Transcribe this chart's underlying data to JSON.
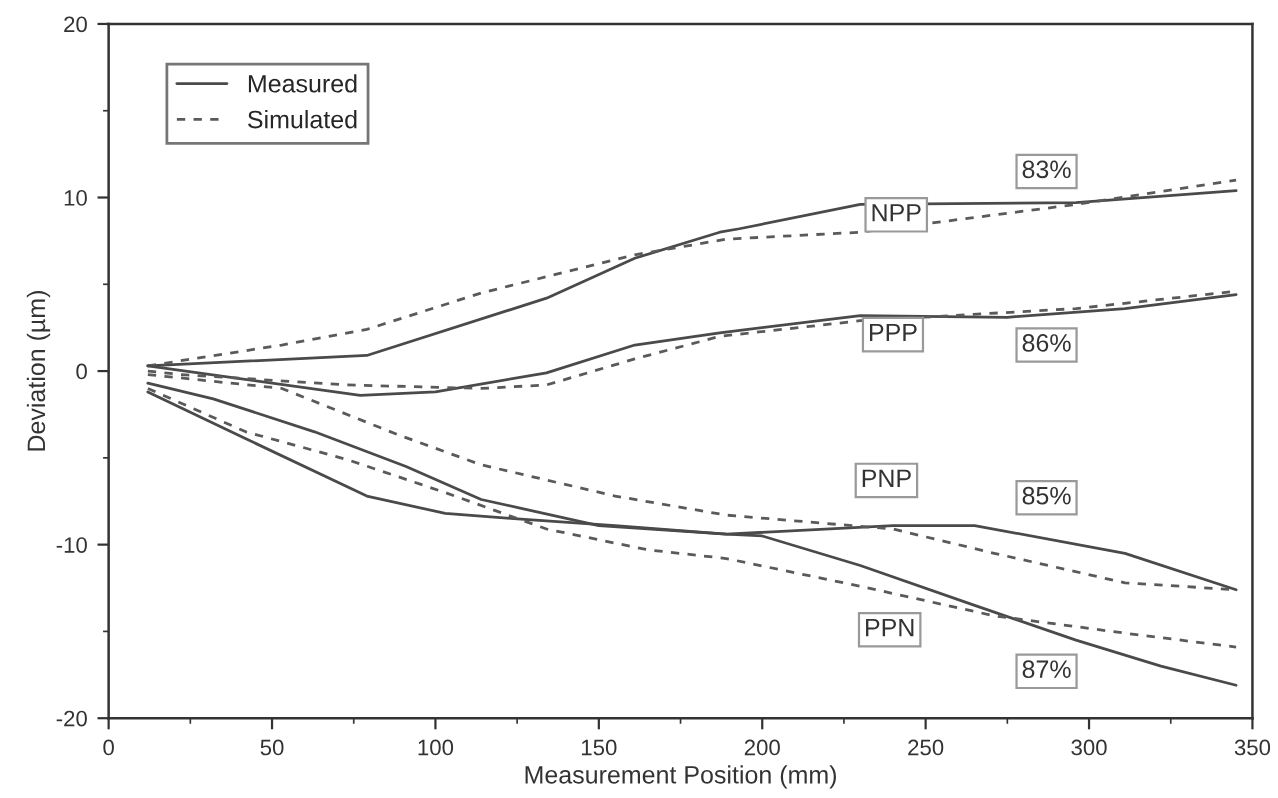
{
  "chart_data": {
    "type": "line",
    "xlabel": "Measurement Position (mm)",
    "ylabel": "Deviation (µm)",
    "xlim": [
      0,
      350
    ],
    "xticks": [
      0,
      50,
      100,
      150,
      200,
      250,
      300,
      350
    ],
    "ylim": [
      -20,
      20
    ],
    "yticks": [
      -20,
      -10,
      0,
      10,
      20
    ],
    "grid": false,
    "legend": "top left",
    "marker": "none",
    "series": [
      {
        "name": "Measured",
        "color": "#4a4a4a",
        "line_style": "solid",
        "x": [
          12,
          79,
          134,
          161,
          187,
          193,
          230,
          296,
          345
        ],
        "values": [
          0.3,
          0.9,
          4.2,
          6.5,
          8.0,
          8.2,
          9.6,
          9.7,
          10.4
        ]
      },
      {
        "name": "Simulated",
        "color": "#5a5a5a",
        "line_style": "dashed",
        "x": [
          12,
          53,
          79,
          114,
          161,
          189,
          230,
          296,
          345
        ],
        "values": [
          0.3,
          1.5,
          2.4,
          4.5,
          6.7,
          7.6,
          8.0,
          9.6,
          11.0
        ]
      },
      {
        "color": "#4a4a4a",
        "line_style": "solid",
        "x": [
          12,
          77,
          100,
          134,
          161,
          187,
          230,
          275,
          311,
          345
        ],
        "values": [
          0.3,
          -1.4,
          -1.2,
          -0.1,
          1.5,
          2.2,
          3.2,
          3.1,
          3.6,
          4.4
        ]
      },
      {
        "color": "#5a5a5a",
        "line_style": "dashed",
        "x": [
          12,
          22,
          73,
          114,
          134,
          161,
          187,
          230,
          296,
          345
        ],
        "values": [
          0.0,
          -0.2,
          -0.8,
          -1.0,
          -0.8,
          0.7,
          2.0,
          2.9,
          3.6,
          4.6
        ]
      },
      {
        "color": "#4a4a4a",
        "line_style": "solid",
        "x": [
          12,
          32,
          63,
          91,
          114,
          150,
          189,
          240,
          265,
          311,
          345
        ],
        "values": [
          -0.7,
          -1.6,
          -3.5,
          -5.5,
          -7.4,
          -8.9,
          -9.4,
          -8.9,
          -8.9,
          -10.5,
          -12.6
        ]
      },
      {
        "color": "#5a5a5a",
        "line_style": "dashed",
        "x": [
          12,
          53,
          89,
          114,
          155,
          189,
          240,
          271,
          311,
          345
        ],
        "values": [
          -0.2,
          -1.0,
          -3.7,
          -5.4,
          -7.2,
          -8.3,
          -9.1,
          -10.5,
          -12.2,
          -12.6
        ]
      },
      {
        "color": "#4a4a4a",
        "line_style": "solid",
        "x": [
          12,
          42,
          79,
          103,
          124,
          155,
          189,
          200,
          230,
          265,
          296,
          322,
          345
        ],
        "values": [
          -1.2,
          -3.9,
          -7.2,
          -8.2,
          -8.5,
          -8.9,
          -9.4,
          -9.5,
          -11.2,
          -13.5,
          -15.5,
          -17.0,
          -18.1
        ]
      },
      {
        "color": "#5a5a5a",
        "line_style": "dashed",
        "x": [
          12,
          42,
          73,
          103,
          134,
          165,
          189,
          230,
          271,
          311,
          345
        ],
        "values": [
          -1.0,
          -3.5,
          -5.1,
          -7.0,
          -9.1,
          -10.3,
          -10.8,
          -12.4,
          -14.1,
          -15.1,
          -15.9
        ]
      }
    ],
    "annotations": [
      {
        "text": "NPP",
        "x": 241,
        "y": 9.0
      },
      {
        "text": "83%",
        "x": 287,
        "y": 11.5
      },
      {
        "text": "PPP",
        "x": 240,
        "y": 2.1
      },
      {
        "text": "86%",
        "x": 287,
        "y": 1.5
      },
      {
        "text": "PNP",
        "x": 238,
        "y": -6.3
      },
      {
        "text": "85%",
        "x": 287,
        "y": -7.3
      },
      {
        "text": "PPN",
        "x": 239,
        "y": -14.9
      },
      {
        "text": "87%",
        "x": 287,
        "y": -17.3
      }
    ]
  }
}
